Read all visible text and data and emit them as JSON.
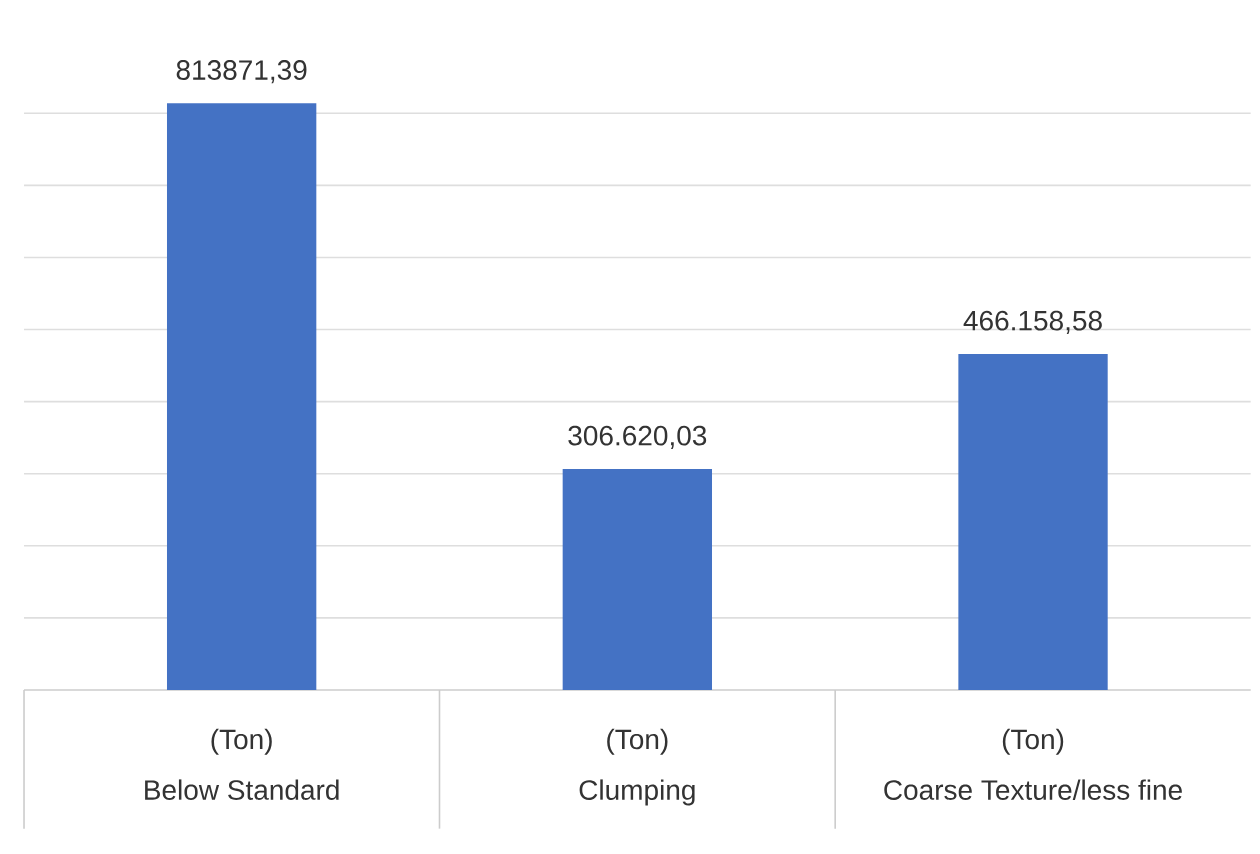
{
  "chart_data": {
    "type": "bar",
    "categories": [
      "Below Standard",
      "Clumping",
      "Coarse Texture/less fine"
    ],
    "values": [
      813871.39,
      306620.03,
      466158.58
    ],
    "value_labels": [
      "813871,39",
      "306.620,03",
      "466.158,58"
    ],
    "color": "#4472c4",
    "grid": "y",
    "tick_labels": "x",
    "annotations": [
      "(Ton)",
      "(Ton)",
      "(Ton)"
    ]
  }
}
